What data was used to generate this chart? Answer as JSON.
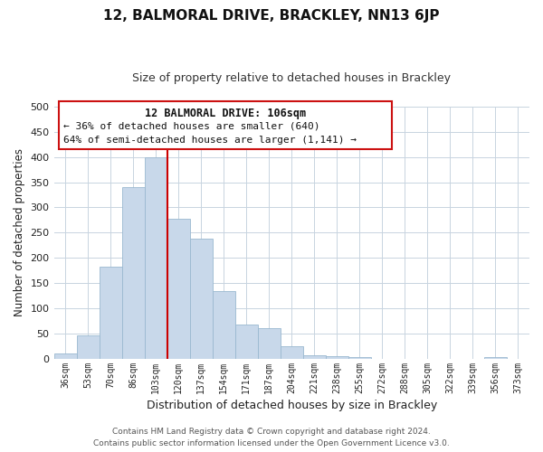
{
  "title": "12, BALMORAL DRIVE, BRACKLEY, NN13 6JP",
  "subtitle": "Size of property relative to detached houses in Brackley",
  "xlabel": "Distribution of detached houses by size in Brackley",
  "ylabel": "Number of detached properties",
  "bar_labels": [
    "36sqm",
    "53sqm",
    "70sqm",
    "86sqm",
    "103sqm",
    "120sqm",
    "137sqm",
    "154sqm",
    "171sqm",
    "187sqm",
    "204sqm",
    "221sqm",
    "238sqm",
    "255sqm",
    "272sqm",
    "288sqm",
    "305sqm",
    "322sqm",
    "339sqm",
    "356sqm",
    "373sqm"
  ],
  "bar_values": [
    10,
    47,
    183,
    340,
    400,
    278,
    238,
    135,
    68,
    61,
    25,
    8,
    5,
    3,
    0,
    0,
    0,
    0,
    0,
    3,
    0
  ],
  "bar_color": "#c8d8ea",
  "bar_edge_color": "#9ab8d0",
  "vline_x_idx": 4,
  "vline_color": "#cc0000",
  "ylim": [
    0,
    500
  ],
  "yticks": [
    0,
    50,
    100,
    150,
    200,
    250,
    300,
    350,
    400,
    450,
    500
  ],
  "annotation_title": "12 BALMORAL DRIVE: 106sqm",
  "annotation_line1": "← 36% of detached houses are smaller (640)",
  "annotation_line2": "64% of semi-detached houses are larger (1,141) →",
  "footer_line1": "Contains HM Land Registry data © Crown copyright and database right 2024.",
  "footer_line2": "Contains public sector information licensed under the Open Government Licence v3.0.",
  "background_color": "#ffffff",
  "grid_color": "#c8d4e0",
  "title_fontsize": 11,
  "subtitle_fontsize": 9
}
